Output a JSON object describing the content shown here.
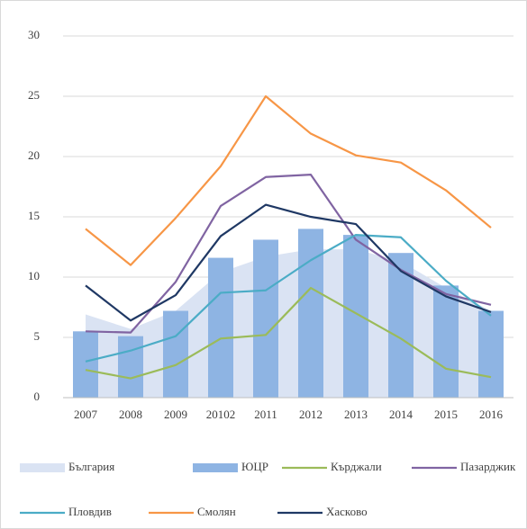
{
  "chart_data": {
    "type": "combo",
    "categories": [
      "2007",
      "2008",
      "2009",
      "20102",
      "2011",
      "2012",
      "2013",
      "2014",
      "2015",
      "2016"
    ],
    "ylim": [
      0,
      30
    ],
    "yticks": [
      0,
      5,
      10,
      15,
      20,
      25,
      30
    ],
    "grid": true,
    "legend": "bottom",
    "series": [
      {
        "name": "България",
        "type": "area",
        "color": "#dae3f3",
        "values": [
          6.9,
          5.7,
          7.2,
          10.4,
          11.7,
          12.3,
          12.3,
          11.3,
          9.1,
          7.2
        ]
      },
      {
        "name": "ЮЦР",
        "type": "bar",
        "color": "#8eb4e3",
        "values": [
          5.5,
          5.1,
          7.2,
          11.6,
          13.1,
          14.0,
          13.5,
          12.0,
          9.3,
          7.2
        ]
      },
      {
        "name": "Кърджали",
        "type": "line",
        "color": "#9bbb59",
        "values": [
          2.3,
          1.6,
          2.7,
          4.9,
          5.2,
          9.1,
          7.0,
          4.9,
          2.4,
          1.7
        ]
      },
      {
        "name": "Пазарджик",
        "type": "line",
        "color": "#8064a2",
        "values": [
          5.5,
          5.4,
          9.6,
          15.9,
          18.3,
          18.5,
          13.1,
          10.6,
          8.6,
          7.7
        ]
      },
      {
        "name": "Пловдив",
        "type": "line",
        "color": "#4bacc6",
        "values": [
          3.0,
          3.9,
          5.1,
          8.7,
          8.9,
          11.4,
          13.5,
          13.3,
          9.7,
          6.8
        ]
      },
      {
        "name": "Смолян",
        "type": "line",
        "color": "#f79646",
        "values": [
          14.0,
          11.0,
          14.9,
          19.2,
          25.0,
          21.9,
          20.1,
          19.5,
          17.2,
          14.1
        ]
      },
      {
        "name": "Хасково",
        "type": "line",
        "color": "#1f3864",
        "values": [
          9.3,
          6.4,
          8.5,
          13.4,
          16.0,
          15.0,
          14.4,
          10.5,
          8.4,
          7.1
        ]
      }
    ]
  }
}
